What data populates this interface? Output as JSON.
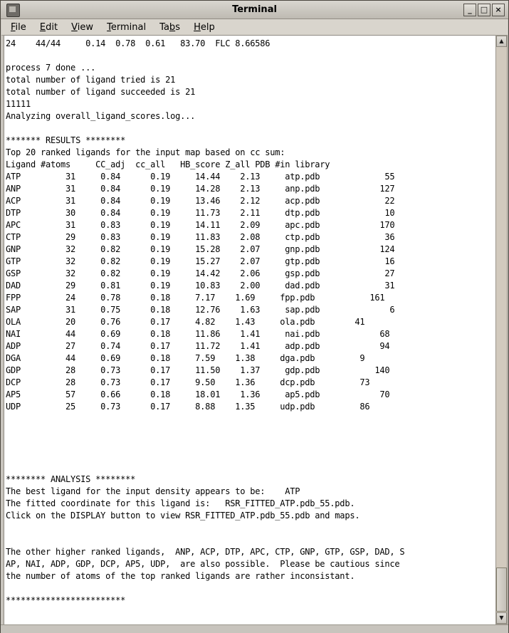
{
  "window": {
    "title": "Terminal",
    "controls": {
      "minimize": "_",
      "maximize": "□",
      "close": "×"
    }
  },
  "menu": {
    "items": [
      {
        "pre": "",
        "accel": "F",
        "post": "ile"
      },
      {
        "pre": "",
        "accel": "E",
        "post": "dit"
      },
      {
        "pre": "",
        "accel": "V",
        "post": "iew"
      },
      {
        "pre": "",
        "accel": "T",
        "post": "erminal"
      },
      {
        "pre": "Ta",
        "accel": "b",
        "post": "s"
      },
      {
        "pre": "",
        "accel": "H",
        "post": "elp"
      }
    ]
  },
  "terminal": {
    "lines": [
      "24    44/44     0.14  0.78  0.61   83.70  FLC 8.66586",
      "",
      "process 7 done ...",
      "total number of ligand tried is 21",
      "total number of ligand succeeded is 21",
      "11111",
      "Analyzing overall_ligand_scores.log...",
      "",
      "******* RESULTS ********",
      "Top 20 ranked ligands for the input map based on cc sum:",
      "Ligand #atoms     CC_adj  cc_all   HB_score Z_all PDB #in library",
      "ATP         31     0.84      0.19     14.44    2.13     atp.pdb             55",
      "ANP         31     0.84      0.19     14.28    2.13     anp.pdb            127",
      "ACP         31     0.84      0.19     13.46    2.12     acp.pdb             22",
      "DTP         30     0.84      0.19     11.73    2.11     dtp.pdb             10",
      "APC         31     0.83      0.19     14.11    2.09     apc.pdb            170",
      "CTP         29     0.83      0.19     11.83    2.08     ctp.pdb             36",
      "GNP         32     0.82      0.19     15.28    2.07     gnp.pdb            124",
      "GTP         32     0.82      0.19     15.27    2.07     gtp.pdb             16",
      "GSP         32     0.82      0.19     14.42    2.06     gsp.pdb             27",
      "DAD         29     0.81      0.19     10.83    2.00     dad.pdb             31",
      "FPP         24     0.78      0.18     7.17    1.69     fpp.pdb           161",
      "SAP         31     0.75      0.18     12.76    1.63     sap.pdb              6",
      "OLA         20     0.76      0.17     4.82    1.43     ola.pdb        41",
      "NAI         44     0.69      0.18     11.86    1.41     nai.pdb            68",
      "ADP         27     0.74      0.17     11.72    1.41     adp.pdb            94",
      "DGA         44     0.69      0.18     7.59    1.38     dga.pdb         9",
      "GDP         28     0.73      0.17     11.50    1.37     gdp.pdb           140",
      "DCP         28     0.73      0.17     9.50    1.36     dcp.pdb         73",
      "AP5         57     0.66      0.18     18.01    1.36     ap5.pdb            70",
      "UDP         25     0.73      0.17     8.88    1.35     udp.pdb         86",
      "",
      "",
      "",
      "",
      "",
      "******** ANALYSIS ********",
      "The best ligand for the input density appears to be:    ATP",
      "The fitted coordinate for this ligand is:   RSR_FITTED_ATP.pdb_55.pdb.",
      "Click on the DISPLAY button to view RSR_FITTED_ATP.pdb_55.pdb and maps.",
      "",
      "",
      "The other higher ranked ligands,  ANP, ACP, DTP, APC, CTP, GNP, GTP, GSP, DAD, S",
      "AP, NAI, ADP, GDP, DCP, AP5, UDP,  are also possible.  Please be cautious since",
      "the number of atoms of the top ranked ligands are rather inconsistant.",
      "",
      "************************"
    ]
  },
  "results_table": {
    "title": "Top 20 ranked ligands for the input map based on cc sum:",
    "headers": [
      "Ligand",
      "#atoms",
      "CC_adj",
      "cc_all",
      "HB_score",
      "Z_all",
      "PDB",
      "#in library"
    ],
    "rows": [
      [
        "ATP",
        31,
        0.84,
        0.19,
        14.44,
        2.13,
        "atp.pdb",
        55
      ],
      [
        "ANP",
        31,
        0.84,
        0.19,
        14.28,
        2.13,
        "anp.pdb",
        127
      ],
      [
        "ACP",
        31,
        0.84,
        0.19,
        13.46,
        2.12,
        "acp.pdb",
        22
      ],
      [
        "DTP",
        30,
        0.84,
        0.19,
        11.73,
        2.11,
        "dtp.pdb",
        10
      ],
      [
        "APC",
        31,
        0.83,
        0.19,
        14.11,
        2.09,
        "apc.pdb",
        170
      ],
      [
        "CTP",
        29,
        0.83,
        0.19,
        11.83,
        2.08,
        "ctp.pdb",
        36
      ],
      [
        "GNP",
        32,
        0.82,
        0.19,
        15.28,
        2.07,
        "gnp.pdb",
        124
      ],
      [
        "GTP",
        32,
        0.82,
        0.19,
        15.27,
        2.07,
        "gtp.pdb",
        16
      ],
      [
        "GSP",
        32,
        0.82,
        0.19,
        14.42,
        2.06,
        "gsp.pdb",
        27
      ],
      [
        "DAD",
        29,
        0.81,
        0.19,
        10.83,
        2.0,
        "dad.pdb",
        31
      ],
      [
        "FPP",
        24,
        0.78,
        0.18,
        7.17,
        1.69,
        "fpp.pdb",
        161
      ],
      [
        "SAP",
        31,
        0.75,
        0.18,
        12.76,
        1.63,
        "sap.pdb",
        6
      ],
      [
        "OLA",
        20,
        0.76,
        0.17,
        4.82,
        1.43,
        "ola.pdb",
        41
      ],
      [
        "NAI",
        44,
        0.69,
        0.18,
        11.86,
        1.41,
        "nai.pdb",
        68
      ],
      [
        "ADP",
        27,
        0.74,
        0.17,
        11.72,
        1.41,
        "adp.pdb",
        94
      ],
      [
        "DGA",
        44,
        0.69,
        0.18,
        7.59,
        1.38,
        "dga.pdb",
        9
      ],
      [
        "GDP",
        28,
        0.73,
        0.17,
        11.5,
        1.37,
        "gdp.pdb",
        140
      ],
      [
        "DCP",
        28,
        0.73,
        0.17,
        9.5,
        1.36,
        "dcp.pdb",
        73
      ],
      [
        "AP5",
        57,
        0.66,
        0.18,
        18.01,
        1.36,
        "ap5.pdb",
        70
      ],
      [
        "UDP",
        25,
        0.73,
        0.17,
        8.88,
        1.35,
        "udp.pdb",
        86
      ]
    ]
  },
  "analysis": {
    "best_ligand": "ATP",
    "fitted_coordinate": "RSR_FITTED_ATP.pdb_55.pdb",
    "note": "the number of atoms of the top ranked ligands are rather inconsistant."
  },
  "colors": {
    "titlebar": "#c9c5be",
    "menubar": "#d9d5cd",
    "terminal_bg": "#ffffff",
    "terminal_text": "#000000",
    "scroll_trough": "#d2cabe"
  },
  "icons": {
    "scroll_up": "▲",
    "scroll_down": "▼"
  }
}
